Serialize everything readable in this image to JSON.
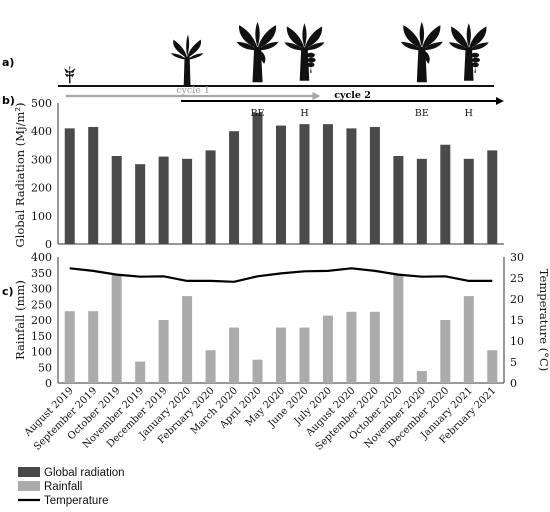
{
  "panel_labels": {
    "a": "a)",
    "b": "b)",
    "c": "c)"
  },
  "cycles": [
    {
      "label": "cycle 1",
      "start": "August 2019",
      "end": "June 2020",
      "color": "#a8a8a8"
    },
    {
      "label": "cycle 2",
      "start": "January 2020",
      "end": "February 2021",
      "color": "#000000"
    }
  ],
  "stage_labels": [
    {
      "label": "BE",
      "month": "April 2020"
    },
    {
      "label": "H",
      "month": "June 2020"
    },
    {
      "label": "BE",
      "month": "November 2020"
    },
    {
      "label": "H",
      "month": "January 2021"
    }
  ],
  "plant_stages": [
    {
      "icon": "seedling-icon",
      "month": "August 2019"
    },
    {
      "icon": "young-banana-plant-icon",
      "month": "January 2020"
    },
    {
      "icon": "flowering-banana-plant-icon",
      "month": "April 2020"
    },
    {
      "icon": "fruiting-banana-plant-icon",
      "month": "June 2020"
    },
    {
      "icon": "flowering-banana-plant-icon",
      "month": "November 2020"
    },
    {
      "icon": "fruiting-banana-plant-icon",
      "month": "January 2021"
    }
  ],
  "chart_data": [
    {
      "type": "bar",
      "ylabel": "Global Radiation (Mj/m²)",
      "ylim": [
        0,
        500
      ],
      "yticks": [
        "0",
        "100",
        "200",
        "300",
        "400",
        "500"
      ],
      "categories": [
        "August 2019",
        "September 2019",
        "October 2019",
        "November 2019",
        "December 2019",
        "January 2020",
        "February 2020",
        "March 2020",
        "April 2020",
        "May 2020",
        "June 2020",
        "July 2020",
        "August 2020",
        "September 2020",
        "October 2020",
        "November 2020",
        "December 2020",
        "January 2021",
        "February 2021"
      ],
      "series": [
        {
          "name": "Global radiation",
          "color": "#4a4a4a",
          "values": [
            410,
            415,
            312,
            283,
            310,
            302,
            332,
            400,
            465,
            420,
            425,
            425,
            410,
            415,
            312,
            302,
            352,
            302,
            332
          ]
        }
      ]
    },
    {
      "type": "bar+line",
      "ylabel": "Rainfall (mm)",
      "ylim": [
        0,
        400
      ],
      "yticks": [
        "0",
        "50",
        "100",
        "150",
        "200",
        "250",
        "300",
        "350",
        "400"
      ],
      "y2label": "Temperature (°C)",
      "y2lim": [
        0,
        30
      ],
      "y2ticks": [
        "0",
        "5",
        "10",
        "15",
        "20",
        "25",
        "30"
      ],
      "categories": [
        "August 2019",
        "September 2019",
        "October 2019",
        "November 2019",
        "December 2019",
        "January 2020",
        "February 2020",
        "March 2020",
        "April 2020",
        "May 2020",
        "June 2020",
        "July 2020",
        "August 2020",
        "September 2020",
        "October 2020",
        "November 2020",
        "December 2020",
        "January 2021",
        "February 2021"
      ],
      "series": [
        {
          "name": "Rainfall",
          "type": "bar",
          "color": "#ababab",
          "values": [
            228,
            228,
            345,
            68,
            200,
            276,
            104,
            176,
            74,
            176,
            176,
            214,
            226,
            226,
            345,
            38,
            200,
            276,
            104
          ]
        },
        {
          "name": "Temperature",
          "type": "line",
          "axis": "right",
          "color": "#000000",
          "values": [
            27.3,
            26.7,
            25.8,
            25.3,
            25.4,
            24.3,
            24.3,
            24.1,
            25.4,
            26.1,
            26.6,
            26.7,
            27.3,
            26.7,
            25.8,
            25.3,
            25.4,
            24.3,
            24.3
          ]
        }
      ]
    }
  ],
  "legend": [
    {
      "label": "Global radiation",
      "kind": "box",
      "color": "#4a4a4a"
    },
    {
      "label": "Rainfall",
      "kind": "box",
      "color": "#ababab"
    },
    {
      "label": "Temperature",
      "kind": "line",
      "color": "#000000"
    }
  ]
}
